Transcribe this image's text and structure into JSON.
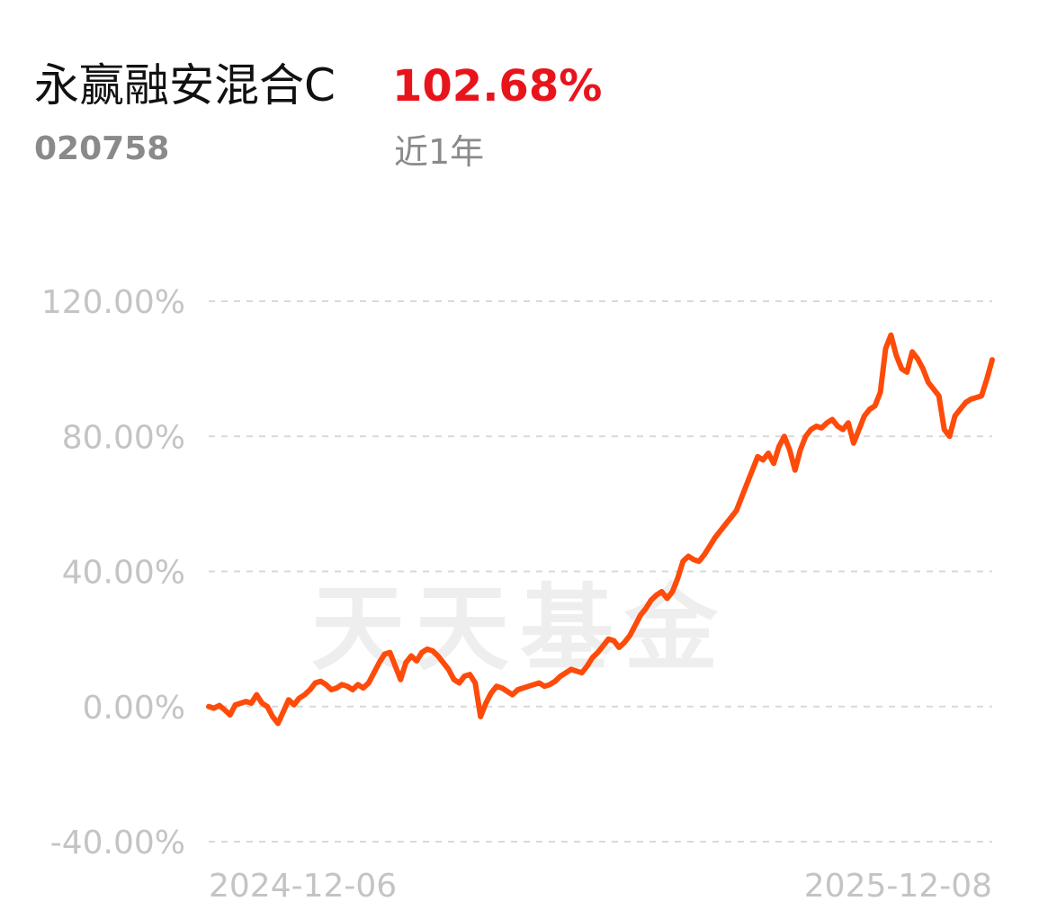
{
  "header": {
    "fund_name": "永赢融安混合C",
    "return_value": "102.68%",
    "fund_code": "020758",
    "period_label": "近1年"
  },
  "colors": {
    "line": "#fe4b0a",
    "grid": "#d9d9d9",
    "axis_text": "#c4c4c4",
    "return_value": "#e8141c",
    "watermark": "#eeeeee"
  },
  "watermark": {
    "text": "天天基金"
  },
  "chart_data": {
    "type": "line",
    "x_start": "2024-12-06",
    "x_end": "2025-12-08",
    "x_tick_labels": [
      "2024-12-06",
      "2025-12-08"
    ],
    "ylim": [
      -40,
      120
    ],
    "y_ticks": [
      120,
      80,
      40,
      0,
      -40
    ],
    "y_tick_labels": [
      "120.00%",
      "80.00%",
      "40.00%",
      "0.00%",
      "-40.00%"
    ],
    "grid": true,
    "series": [
      {
        "values": [
          0.0,
          -0.5,
          0.3,
          -1.0,
          -2.5,
          0.5,
          1.0,
          1.5,
          1.0,
          3.5,
          1.0,
          0.0,
          -3.0,
          -5.0,
          -1.5,
          2.0,
          0.5,
          2.5,
          3.5,
          5.0,
          7.0,
          7.5,
          6.5,
          5.0,
          5.5,
          6.5,
          6.0,
          5.0,
          6.5,
          5.5,
          7.0,
          10.0,
          13.0,
          15.5,
          16.0,
          12.0,
          8.0,
          13.0,
          15.0,
          13.5,
          16.0,
          17.0,
          16.5,
          15.0,
          13.0,
          11.0,
          8.0,
          7.0,
          9.0,
          9.5,
          7.0,
          -3.0,
          1.0,
          4.0,
          6.0,
          5.5,
          4.5,
          3.5,
          5.0,
          5.5,
          6.0,
          6.5,
          7.0,
          6.0,
          6.5,
          7.5,
          9.0,
          10.0,
          11.0,
          10.5,
          10.0,
          12.0,
          14.5,
          16.0,
          18.0,
          20.0,
          19.5,
          17.5,
          19.0,
          21.0,
          24.0,
          27.0,
          29.0,
          31.5,
          33.0,
          34.0,
          32.0,
          34.0,
          38.0,
          43.0,
          44.5,
          43.5,
          43.0,
          45.0,
          47.5,
          50.0,
          52.0,
          54.0,
          56.0,
          58.0,
          62.0,
          66.0,
          70.0,
          74.0,
          73.0,
          75.0,
          72.0,
          77.0,
          80.0,
          76.0,
          70.0,
          76.0,
          80.0,
          82.0,
          83.0,
          82.5,
          84.0,
          85.0,
          83.0,
          82.0,
          84.0,
          78.0,
          82.0,
          86.0,
          88.0,
          89.0,
          93.0,
          106.0,
          110.0,
          104.0,
          100.0,
          99.0,
          105.0,
          103.0,
          100.0,
          96.0,
          94.0,
          92.0,
          82.0,
          80.0,
          86.0,
          88.0,
          90.0,
          91.0,
          91.5,
          92.0,
          97.0,
          102.68
        ]
      }
    ]
  }
}
